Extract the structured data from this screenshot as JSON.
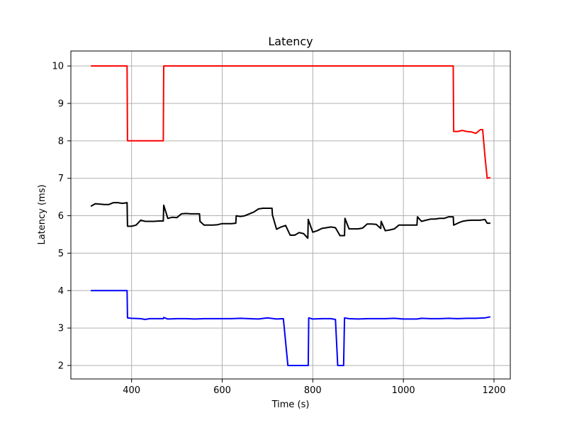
{
  "chart_data": {
    "type": "line",
    "title": "Latency",
    "xlabel": "Time (s)",
    "ylabel": "Latency (ms)",
    "xlim": [
      266,
      1236
    ],
    "ylim": [
      1.64,
      10.4
    ],
    "xticks": [
      400,
      600,
      800,
      1000,
      1200
    ],
    "yticks": [
      2,
      3,
      4,
      5,
      6,
      7,
      8,
      9,
      10
    ],
    "grid": true,
    "legend": "none",
    "series": [
      {
        "color": "#ff0000",
        "x": [
          310,
          390,
          391,
          470,
          471,
          1110,
          1111,
          1120,
          1130,
          1140,
          1150,
          1160,
          1165,
          1170,
          1175,
          1180,
          1185,
          1192
        ],
        "y": [
          10,
          10,
          8,
          8,
          10,
          10,
          8.25,
          8.25,
          8.28,
          8.25,
          8.24,
          8.2,
          8.25,
          8.3,
          8.3,
          7.6,
          7.0,
          7.02
        ]
      },
      {
        "color": "#000000",
        "x": [
          310,
          320,
          340,
          350,
          360,
          370,
          380,
          390,
          391,
          400,
          410,
          420,
          430,
          440,
          450,
          460,
          470,
          471,
          480,
          490,
          500,
          510,
          520,
          530,
          540,
          550,
          551,
          560,
          570,
          580,
          590,
          600,
          610,
          620,
          630,
          631,
          640,
          650,
          660,
          670,
          680,
          690,
          700,
          710,
          711,
          720,
          730,
          740,
          750,
          760,
          770,
          780,
          789,
          790,
          800,
          810,
          820,
          830,
          840,
          850,
          860,
          870,
          871,
          880,
          890,
          900,
          910,
          920,
          930,
          940,
          950,
          951,
          960,
          970,
          980,
          990,
          1000,
          1010,
          1020,
          1030,
          1031,
          1040,
          1050,
          1060,
          1070,
          1080,
          1090,
          1100,
          1110,
          1111,
          1120,
          1130,
          1140,
          1150,
          1160,
          1170,
          1180,
          1185,
          1192
        ],
        "y": [
          6.25,
          6.32,
          6.3,
          6.3,
          6.35,
          6.35,
          6.33,
          6.35,
          5.72,
          5.72,
          5.75,
          5.88,
          5.85,
          5.85,
          5.85,
          5.86,
          5.86,
          6.28,
          5.93,
          5.96,
          5.95,
          6.05,
          6.06,
          6.05,
          6.05,
          6.05,
          5.85,
          5.75,
          5.75,
          5.75,
          5.76,
          5.79,
          5.79,
          5.79,
          5.8,
          6.0,
          5.98,
          6.0,
          6.05,
          6.1,
          6.18,
          6.2,
          6.2,
          6.2,
          6.02,
          5.64,
          5.7,
          5.74,
          5.48,
          5.48,
          5.55,
          5.52,
          5.4,
          5.9,
          5.56,
          5.6,
          5.66,
          5.68,
          5.7,
          5.68,
          5.47,
          5.47,
          5.93,
          5.65,
          5.65,
          5.65,
          5.67,
          5.78,
          5.78,
          5.77,
          5.66,
          5.85,
          5.6,
          5.62,
          5.65,
          5.75,
          5.75,
          5.75,
          5.75,
          5.75,
          5.97,
          5.85,
          5.88,
          5.91,
          5.91,
          5.93,
          5.93,
          5.97,
          5.97,
          5.75,
          5.8,
          5.85,
          5.87,
          5.88,
          5.88,
          5.88,
          5.9,
          5.8,
          5.8
        ]
      },
      {
        "color": "#0000ff",
        "x": [
          310,
          390,
          391,
          400,
          420,
          430,
          440,
          460,
          470,
          471,
          480,
          500,
          520,
          540,
          560,
          580,
          600,
          620,
          640,
          660,
          680,
          700,
          720,
          735,
          745,
          790,
          791,
          800,
          820,
          840,
          850,
          855,
          868,
          870,
          880,
          900,
          920,
          940,
          960,
          980,
          1000,
          1020,
          1030,
          1040,
          1060,
          1080,
          1100,
          1120,
          1140,
          1160,
          1180,
          1192
        ],
        "y": [
          4.0,
          4.0,
          3.27,
          3.26,
          3.25,
          3.23,
          3.25,
          3.25,
          3.25,
          3.28,
          3.24,
          3.25,
          3.25,
          3.24,
          3.25,
          3.25,
          3.25,
          3.25,
          3.26,
          3.25,
          3.24,
          3.27,
          3.24,
          3.25,
          2.0,
          2.0,
          3.27,
          3.24,
          3.25,
          3.25,
          3.23,
          2.0,
          2.0,
          3.27,
          3.25,
          3.24,
          3.25,
          3.25,
          3.25,
          3.26,
          3.24,
          3.24,
          3.24,
          3.26,
          3.25,
          3.25,
          3.26,
          3.25,
          3.26,
          3.26,
          3.27,
          3.3
        ]
      }
    ]
  }
}
